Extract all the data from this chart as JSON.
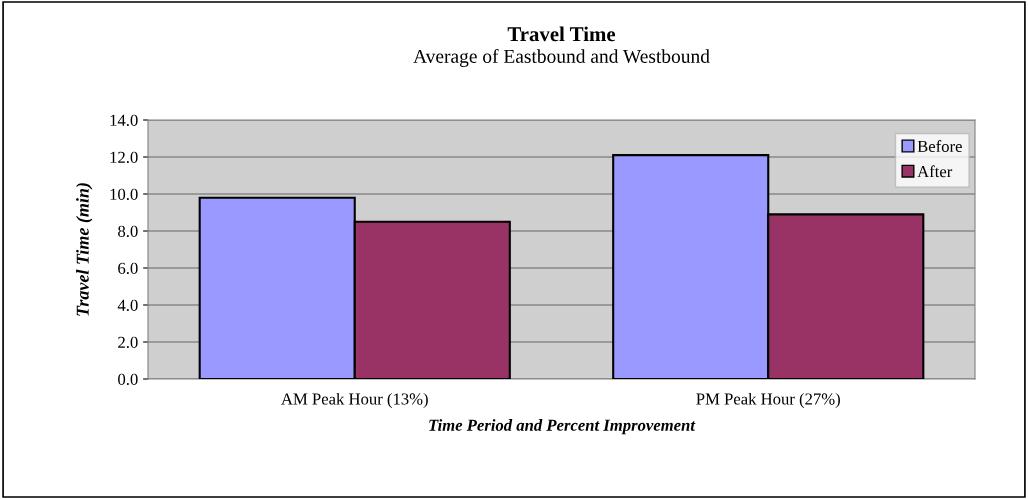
{
  "chart_data": {
    "type": "bar",
    "title": "Travel Time",
    "subtitle": "Average of Eastbound and Westbound",
    "xlabel": "Time Period and Percent Improvement",
    "ylabel": "Travel Time (min)",
    "categories": [
      "AM Peak Hour (13%)",
      "PM Peak Hour (27%)"
    ],
    "series": [
      {
        "name": "Before",
        "color": "#9999ff",
        "values": [
          9.8,
          12.1
        ]
      },
      {
        "name": "After",
        "color": "#993366",
        "values": [
          8.5,
          8.9
        ]
      }
    ],
    "ylim": [
      0,
      14
    ],
    "yticks": [
      {
        "value": 0,
        "label": "0.0"
      },
      {
        "value": 2,
        "label": "2.0"
      },
      {
        "value": 4,
        "label": "4.0"
      },
      {
        "value": 6,
        "label": "6.0"
      },
      {
        "value": 8,
        "label": "8.0"
      },
      {
        "value": 10,
        "label": "10.0"
      },
      {
        "value": 12,
        "label": "12.0"
      },
      {
        "value": 14,
        "label": "14.0"
      }
    ],
    "grid": "y",
    "legend": "top right"
  }
}
